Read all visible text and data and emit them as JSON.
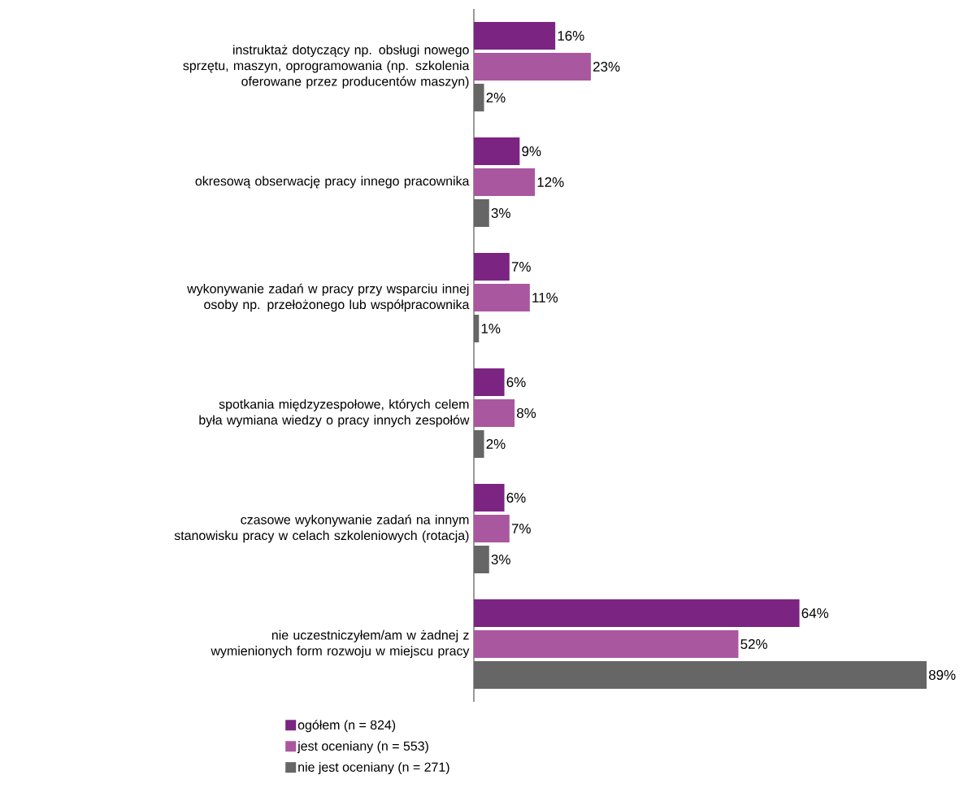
{
  "chart_data": {
    "type": "bar",
    "orientation": "horizontal",
    "legend": "bottom",
    "categories": [
      "instruktaż dotyczący np. obsługi nowego sprzętu, maszyn, oprogramowania (np. szkolenia oferowane przez producentów maszyn)",
      "okresową obserwację pracy innego pracownika",
      "wykonywanie zadań w pracy przy wsparciu innej osoby np. przełożonego lub współpracownika",
      "spotkania międzyzespołowe, których celem była wymiana wiedzy o pracy innych zespołów",
      "czasowe wykonywanie zadań na innym stanowisku pracy w celach szkoleniowych (rotacja)",
      "nie uczestniczyłem/am w żadnej z wymienionych form rozwoju w miejscu pracy"
    ],
    "series": [
      {
        "name": "ogółem (n = 824)",
        "color": "#7b2482",
        "values": [
          16,
          9,
          7,
          6,
          6,
          64
        ],
        "value_labels": [
          "16%",
          "9%",
          "7%",
          "6%",
          "6%",
          "64%"
        ]
      },
      {
        "name": "jest oceniany (n = 553)",
        "color": "#a9579f",
        "values": [
          23,
          12,
          11,
          8,
          7,
          52
        ],
        "value_labels": [
          "23%",
          "12%",
          "11%",
          "8%",
          "7%",
          "52%"
        ]
      },
      {
        "name": "nie jest oceniany (n = 271)",
        "color": "#666666",
        "values": [
          2,
          3,
          1,
          2,
          3,
          89
        ],
        "value_labels": [
          "2%",
          "3%",
          "1%",
          "2%",
          "3%",
          "89%"
        ]
      }
    ]
  }
}
